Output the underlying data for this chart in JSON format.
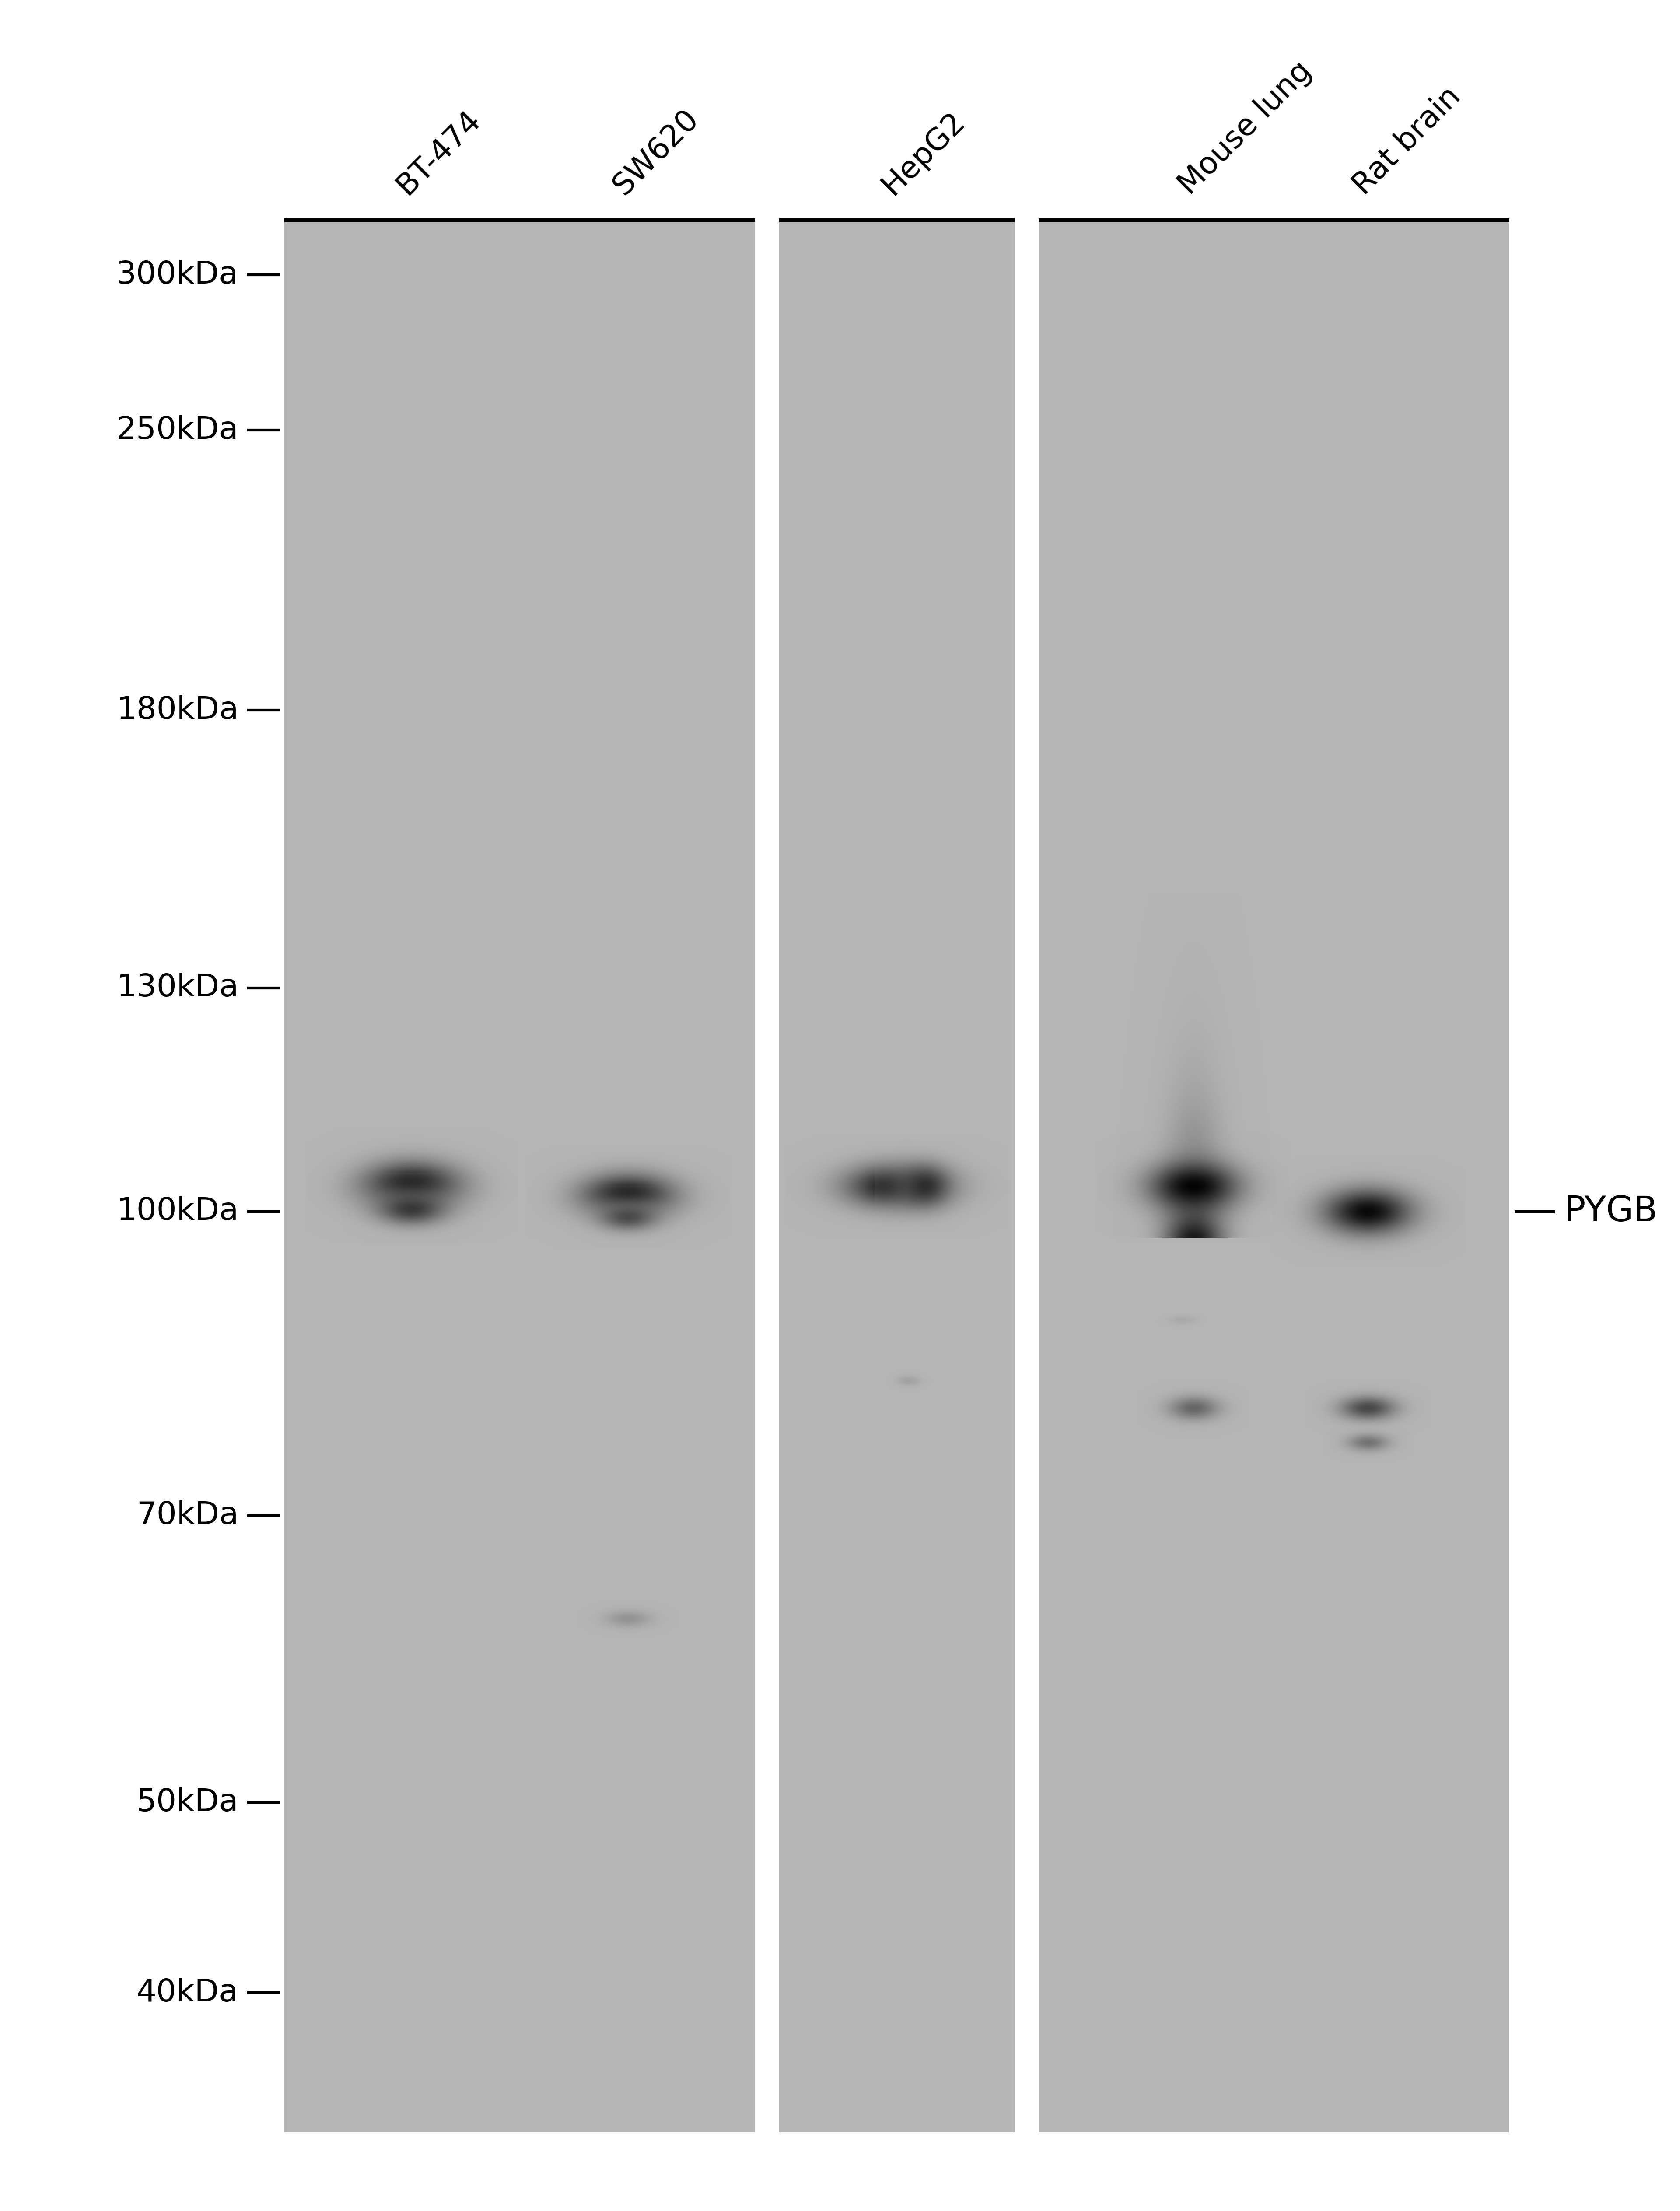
{
  "white_bg": "#ffffff",
  "blot_bg": "#b8b8b8",
  "lane_labels": [
    "BT-474",
    "SW620",
    "HepG2",
    "Mouse lung",
    "Rat brain"
  ],
  "mw_markers": [
    "300kDa",
    "250kDa",
    "180kDa",
    "130kDa",
    "100kDa",
    "70kDa",
    "50kDa",
    "40kDa"
  ],
  "mw_values": [
    300,
    250,
    180,
    130,
    100,
    70,
    50,
    40
  ],
  "pygb_label": "PYGB",
  "fig_width": 38.4,
  "fig_height": 50.53,
  "mw_label_fontsize": 52,
  "lane_label_fontsize": 50,
  "pygb_fontsize": 58,
  "log_mw_min": 1.531,
  "log_mw_max": 2.505
}
